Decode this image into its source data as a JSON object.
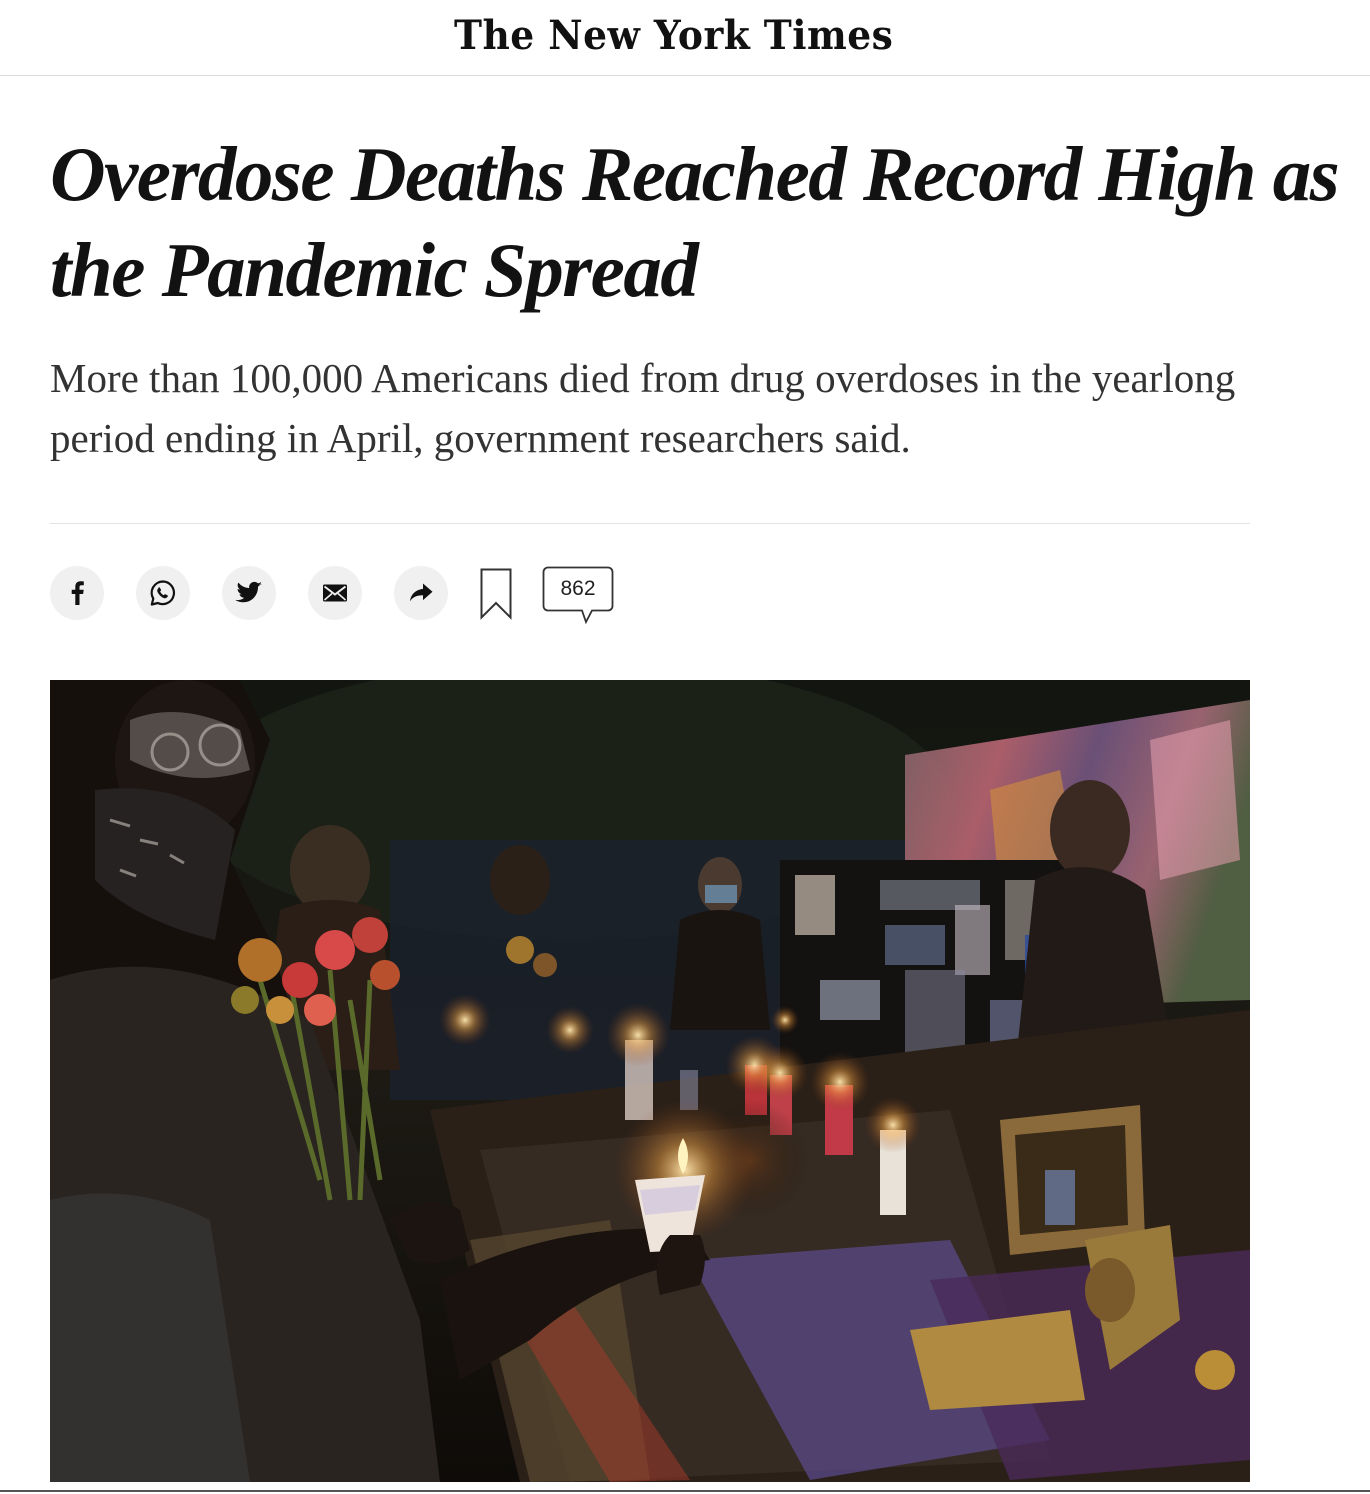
{
  "masthead": {
    "logo_text": "The New York Times"
  },
  "article": {
    "headline": "Overdose Deaths Reached Record High as the Pandemic Spread",
    "summary": "More than 100,000 Americans died from drug overdoses in the yearlong period ending in April, government researchers said."
  },
  "share_tools": {
    "buttons": [
      {
        "name": "facebook",
        "icon": "facebook-icon"
      },
      {
        "name": "whatsapp",
        "icon": "whatsapp-icon"
      },
      {
        "name": "twitter",
        "icon": "twitter-icon"
      },
      {
        "name": "email",
        "icon": "email-icon"
      },
      {
        "name": "share",
        "icon": "share-arrow-icon"
      }
    ],
    "bookmark_icon": "bookmark-icon",
    "comment_count": "862"
  },
  "photo": {
    "subject": "candlelight vigil memorial with flowers, candles and photos at night"
  },
  "colors": {
    "text": "#121212",
    "summary": "#333333",
    "button_bg": "#f0f0f0",
    "rule": "#e2e2e2"
  }
}
